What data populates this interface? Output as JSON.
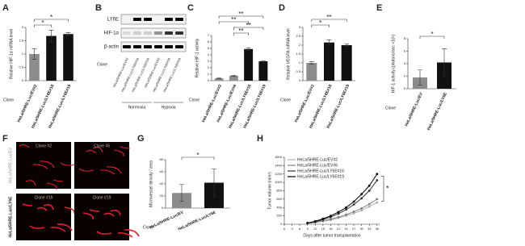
{
  "chart_data": [
    {
      "type": "bar",
      "label": "A",
      "ylabel": "Relative HIF-1α mRNA level",
      "group_label": "Clone",
      "categories": [
        "HeLa/5HRE-Luc/EV#2",
        "HeLa/5HRE-Luc/LY6E#16",
        "HeLa/5HRE-Luc/LY6E#19"
      ],
      "values": [
        1,
        1.68,
        1.75
      ],
      "errors": [
        0.2,
        0.22,
        0.06
      ],
      "colors": [
        "#8c8c8c",
        "#111111",
        "#111111"
      ],
      "ylim": [
        0,
        2
      ],
      "yticks": [
        0,
        0.5,
        1,
        1.5,
        2
      ],
      "significance": [
        {
          "between": [
            0,
            1
          ],
          "text": "*"
        },
        {
          "between": [
            0,
            2
          ],
          "text": "*"
        }
      ]
    },
    {
      "type": "bar",
      "label": "C",
      "ylabel": "Relative HIF-1 activity",
      "group_label": "Clone",
      "categories": [
        "HeLa/5HRE-Luc/EV#2",
        "HeLa/5HRE-Luc/EV#6",
        "HeLa/5HRE-Luc/LY6E#16",
        "HeLa/5HRE-Luc/LY6E#19"
      ],
      "values": [
        0.35,
        0.75,
        4.9,
        3.0
      ],
      "errors": [
        0.05,
        0.06,
        0.2,
        0.05
      ],
      "colors": [
        "#8c8c8c",
        "#8c8c8c",
        "#111111",
        "#111111"
      ],
      "ylim": [
        0,
        7
      ],
      "yticks": [
        0,
        1,
        2,
        3,
        4,
        5,
        6,
        7
      ],
      "significance": [
        {
          "between": [
            1,
            2
          ],
          "text": "**"
        },
        {
          "between": [
            1,
            3
          ],
          "text": "**"
        },
        {
          "between": [
            0,
            2
          ],
          "text": "**"
        },
        {
          "between": [
            0,
            3
          ],
          "text": "**"
        }
      ]
    },
    {
      "type": "bar",
      "label": "D",
      "ylabel": "Relative VEGFA mRNA level",
      "group_label": "Clone",
      "categories": [
        "HeLa/5HRE-Luc/EV#2",
        "HeLa/5HRE-Luc/LY6E#16",
        "HeLa/5HRE-Luc/LY6E#19"
      ],
      "values": [
        1,
        2.15,
        2.0
      ],
      "errors": [
        0.07,
        0.15,
        0.08
      ],
      "colors": [
        "#8c8c8c",
        "#111111",
        "#111111"
      ],
      "ylim": [
        0,
        3
      ],
      "yticks": [
        0,
        0.5,
        1,
        1.5,
        2,
        2.5,
        3
      ],
      "significance": [
        {
          "between": [
            0,
            1
          ],
          "text": "*"
        },
        {
          "between": [
            0,
            2
          ],
          "text": "**"
        }
      ]
    },
    {
      "type": "bar",
      "label": "E",
      "ylabel": "HIF-1 activity (photons/sec ×10⁵)",
      "group_label": "Clone",
      "categories": [
        "HeLa/5HRE-Luc/EV",
        "HeLa/5HRE-Luc/LY6E"
      ],
      "values": [
        1.8,
        4.2
      ],
      "errors": [
        1.2,
        2.2
      ],
      "colors": [
        "#8c8c8c",
        "#111111"
      ],
      "ylim": [
        0,
        8
      ],
      "yticks": [
        0,
        2,
        4,
        6,
        8
      ],
      "significance": [
        {
          "between": [
            0,
            1
          ],
          "text": "*"
        }
      ]
    },
    {
      "type": "bar",
      "label": "G",
      "ylabel": "Microvessel density / area",
      "group_label": "Clone",
      "categories": [
        "HeLa/5HRE-Luc/EV",
        "HeLa/5HRE-Luc/LY6E"
      ],
      "values": [
        25,
        42
      ],
      "errors": [
        14,
        23
      ],
      "colors": [
        "#8c8c8c",
        "#111111"
      ],
      "ylim": [
        0,
        80
      ],
      "yticks": [
        0,
        20,
        40,
        60,
        80
      ],
      "significance": [
        {
          "between": [
            0,
            1
          ],
          "text": "*"
        }
      ]
    },
    {
      "type": "line",
      "label": "H",
      "xlabel": "Days after tumor transplantation",
      "ylabel": "Tumor volume (mm³)",
      "x": [
        9,
        12,
        15,
        18,
        21,
        24,
        27,
        30,
        33,
        36
      ],
      "series": [
        {
          "name": "HeLa/5HRE-Luc/EV#2",
          "color": "#b0b0b0",
          "values": [
            20,
            40,
            70,
            100,
            150,
            200,
            260,
            330,
            420,
            520
          ]
        },
        {
          "name": "HeLa/5HRE-Luc/EV#6",
          "color": "#808080",
          "values": [
            20,
            45,
            80,
            120,
            170,
            230,
            300,
            380,
            480,
            600
          ]
        },
        {
          "name": "HeLa/5HRE-Luc/LY6E#16",
          "color": "#333333",
          "values": [
            25,
            60,
            110,
            170,
            250,
            350,
            470,
            620,
            800,
            1050
          ]
        },
        {
          "name": "HeLa/5HRE-Luc/LY6E#19",
          "color": "#000000",
          "values": [
            30,
            70,
            130,
            200,
            290,
            400,
            540,
            720,
            920,
            1200
          ]
        }
      ],
      "xlim": [
        0,
        37
      ],
      "xticks": [
        0,
        3,
        6,
        9,
        12,
        15,
        18,
        21,
        24,
        27,
        30,
        33,
        36
      ],
      "ylim": [
        0,
        1600
      ],
      "yticks": [
        0,
        200,
        400,
        600,
        800,
        1000,
        1200,
        1400,
        1600
      ],
      "significance": [
        {
          "text": "*"
        }
      ]
    }
  ],
  "blot": {
    "label": "B",
    "rows": [
      "LY6E",
      "HIF-1α",
      "β-actin"
    ],
    "conditions": [
      "Normoxia",
      "Hypoxia"
    ],
    "group_label": "Clone",
    "lanes": [
      "HeLa/5HRE-Luc/EV#2",
      "HeLa/5HRE-Luc/LY6E#16",
      "HeLa/5HRE-Luc/LY6E#19",
      "HeLa/5HRE-Luc/EV#2",
      "HeLa/5HRE-Luc/LY6E#16",
      "HeLa/5HRE-Luc/LY6E#19"
    ]
  },
  "images": {
    "label": "F",
    "clones": [
      "Clone #2",
      "Clone #6",
      "Clone #16",
      "Clone #19"
    ],
    "rows": [
      "HeLa/5HRE-Luc/EV",
      "HeLa/5HRE-Luc/LY6E"
    ]
  }
}
